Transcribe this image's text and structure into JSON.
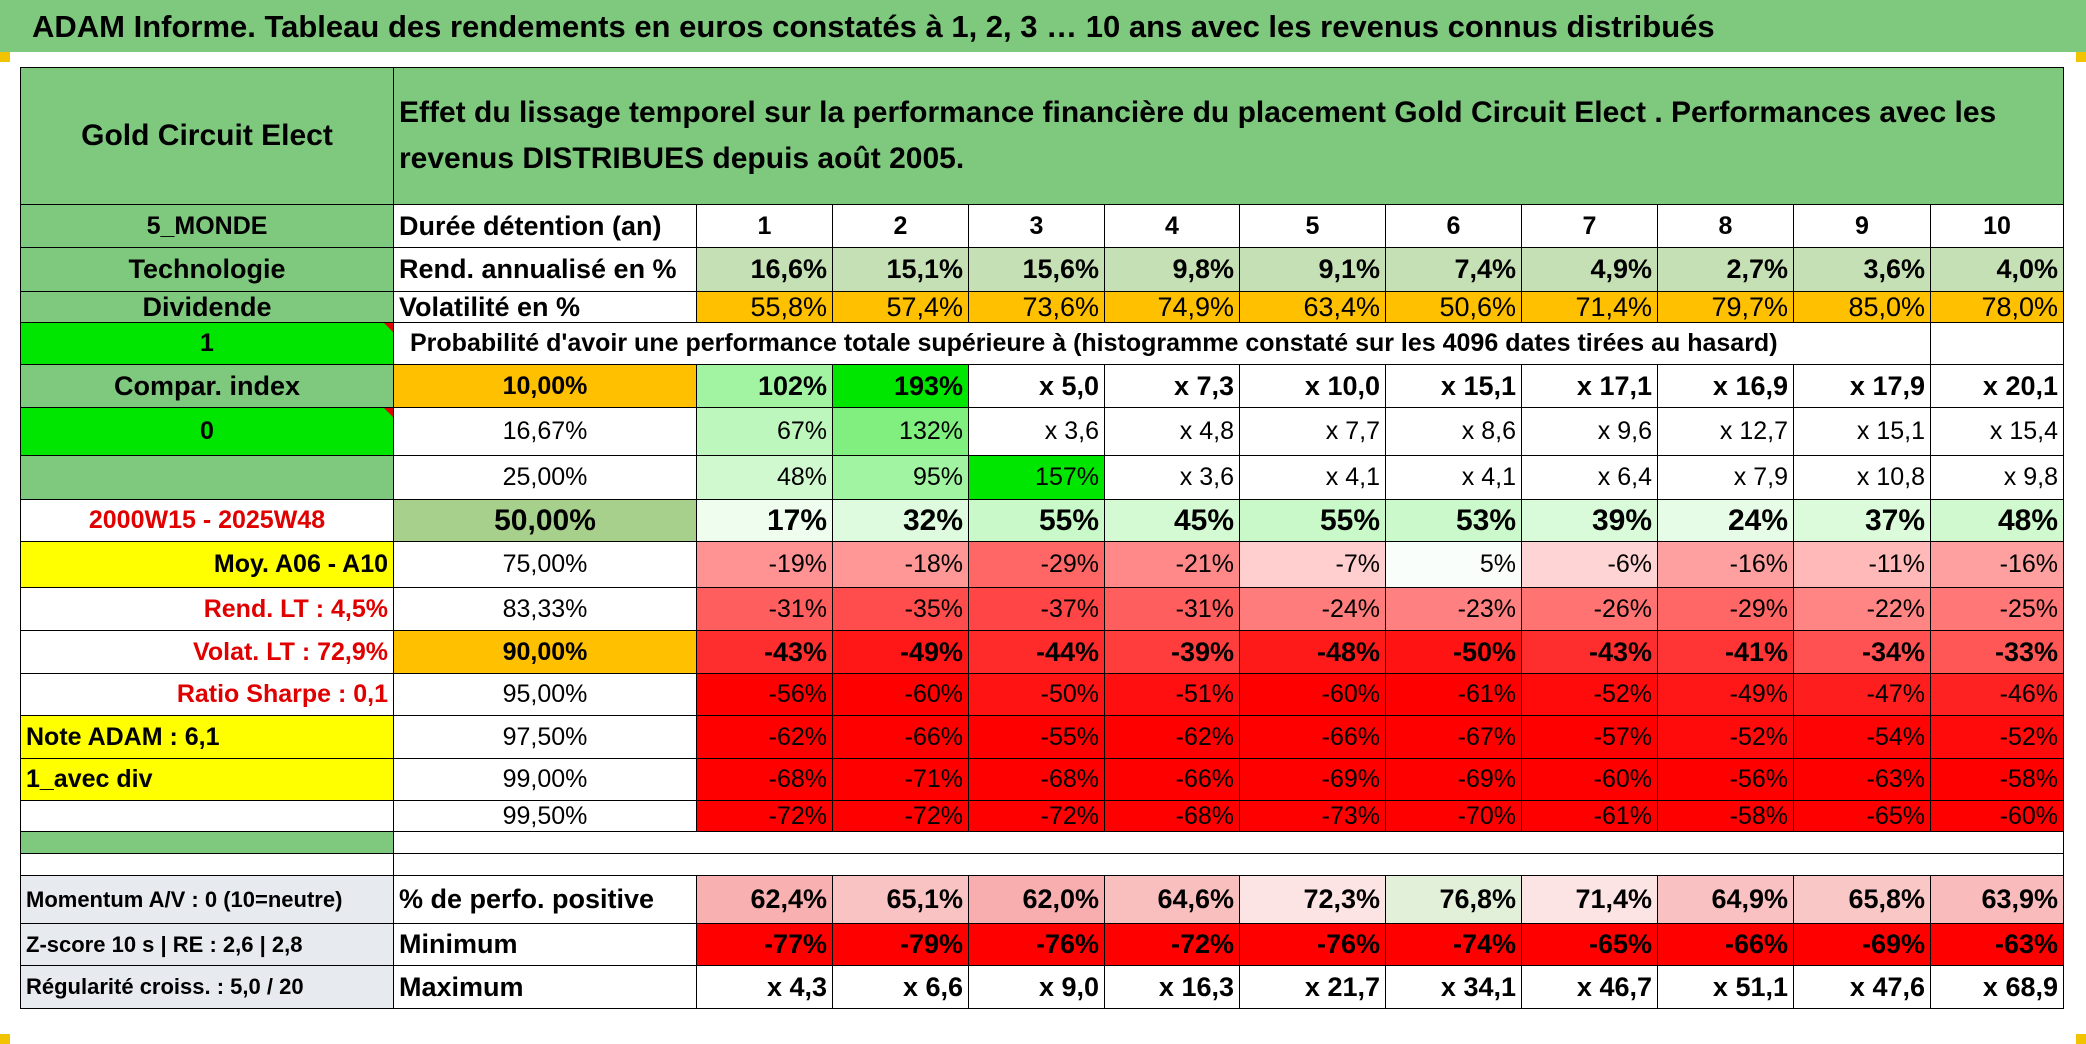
{
  "title": "ADAM Informe. Tableau des rendements en euros constatés à 1, 2, 3 … 10 ans avec les revenus connus distribués",
  "colors": {
    "green_header": "#7fc97f",
    "orange": "#ffc000",
    "yellow": "#ffff00",
    "bright_green": "#00e600",
    "red_text": "#e00000"
  },
  "left": {
    "fund_name": "Gold Circuit Elect",
    "zone": "5_MONDE",
    "sector": "Technologie",
    "distribution": "Dividende",
    "flag1": "1",
    "compar_index": "Compar. index",
    "flag0": "0",
    "period": "2000W15 - 2025W48",
    "avg": "Moy. A06 - A10",
    "rend_lt": "Rend. LT :   4,5%",
    "volat_lt": "Volat. LT :   72,9%",
    "sharpe": "Ratio Sharpe :    0,1",
    "note": "Note ADAM : 6,1",
    "mode": "1_avec div",
    "momentum": "Momentum A/V : 0 (10=neutre)",
    "zscore": "Z-score 10 s | RE : 2,6 | 2,8",
    "regularite": "Régularité croiss. : 5,0 / 20"
  },
  "header_text": "Effet du lissage temporel sur la performance financière du placement Gold Circuit Elect . Performances avec les revenus DISTRIBUES depuis août 2005.",
  "durations_label": "Durée détention (an)",
  "durations": [
    "1",
    "2",
    "3",
    "4",
    "5",
    "6",
    "7",
    "8",
    "9",
    "10"
  ],
  "rend_label": "Rend. annualisé en %",
  "rend": [
    "16,6%",
    "15,1%",
    "15,6%",
    "9,8%",
    "9,1%",
    "7,4%",
    "4,9%",
    "2,7%",
    "3,6%",
    "4,0%"
  ],
  "vol_label": "Volatilité en %",
  "vol": [
    "55,8%",
    "57,4%",
    "73,6%",
    "74,9%",
    "63,4%",
    "50,6%",
    "71,4%",
    "79,7%",
    "85,0%",
    "78,0%"
  ],
  "prob_label": "Probabilité d'avoir une performance totale supérieure à (histogramme constaté sur les 4096 dates tirées au hasard)",
  "rows": [
    {
      "p": "10,00%",
      "v": [
        "102%",
        "193%",
        "x 5,0",
        "x 7,3",
        "x 10,0",
        "x 15,1",
        "x 17,1",
        "x 16,9",
        "x 17,9",
        "x 20,1"
      ]
    },
    {
      "p": "16,67%",
      "v": [
        "67%",
        "132%",
        "x 3,6",
        "x 4,8",
        "x 7,7",
        "x 8,6",
        "x 9,6",
        "x 12,7",
        "x 15,1",
        "x 15,4"
      ]
    },
    {
      "p": "25,00%",
      "v": [
        "48%",
        "95%",
        "157%",
        "x 3,6",
        "x 4,1",
        "x 4,1",
        "x 6,4",
        "x 7,9",
        "x 10,8",
        "x 9,8"
      ]
    },
    {
      "p": "50,00%",
      "v": [
        "17%",
        "32%",
        "55%",
        "45%",
        "55%",
        "53%",
        "39%",
        "24%",
        "37%",
        "48%"
      ]
    },
    {
      "p": "75,00%",
      "v": [
        "-19%",
        "-18%",
        "-29%",
        "-21%",
        "-7%",
        "5%",
        "-6%",
        "-16%",
        "-11%",
        "-16%"
      ]
    },
    {
      "p": "83,33%",
      "v": [
        "-31%",
        "-35%",
        "-37%",
        "-31%",
        "-24%",
        "-23%",
        "-26%",
        "-29%",
        "-22%",
        "-25%"
      ]
    },
    {
      "p": "90,00%",
      "v": [
        "-43%",
        "-49%",
        "-44%",
        "-39%",
        "-48%",
        "-50%",
        "-43%",
        "-41%",
        "-34%",
        "-33%"
      ]
    },
    {
      "p": "95,00%",
      "v": [
        "-56%",
        "-60%",
        "-50%",
        "-51%",
        "-60%",
        "-61%",
        "-52%",
        "-49%",
        "-47%",
        "-46%"
      ]
    },
    {
      "p": "97,50%",
      "v": [
        "-62%",
        "-66%",
        "-55%",
        "-62%",
        "-66%",
        "-67%",
        "-57%",
        "-52%",
        "-54%",
        "-52%"
      ]
    },
    {
      "p": "99,00%",
      "v": [
        "-68%",
        "-71%",
        "-68%",
        "-66%",
        "-69%",
        "-69%",
        "-60%",
        "-56%",
        "-63%",
        "-58%"
      ]
    },
    {
      "p": "99,50%",
      "v": [
        "-72%",
        "-72%",
        "-72%",
        "-68%",
        "-73%",
        "-70%",
        "-61%",
        "-58%",
        "-65%",
        "-60%"
      ]
    }
  ],
  "pos_label": "% de perfo. positive",
  "pos": [
    "62,4%",
    "65,1%",
    "62,0%",
    "64,6%",
    "72,3%",
    "76,8%",
    "71,4%",
    "64,9%",
    "65,8%",
    "63,9%"
  ],
  "min_label": "Minimum",
  "min": [
    "-77%",
    "-79%",
    "-76%",
    "-72%",
    "-76%",
    "-74%",
    "-65%",
    "-66%",
    "-69%",
    "-63%"
  ],
  "max_label": "Maximum",
  "max": [
    "x 4,3",
    "x 6,6",
    "x 9,0",
    "x 16,3",
    "x 21,7",
    "x 34,1",
    "x 46,7",
    "x 51,1",
    "x 47,6",
    "x 68,9"
  ]
}
